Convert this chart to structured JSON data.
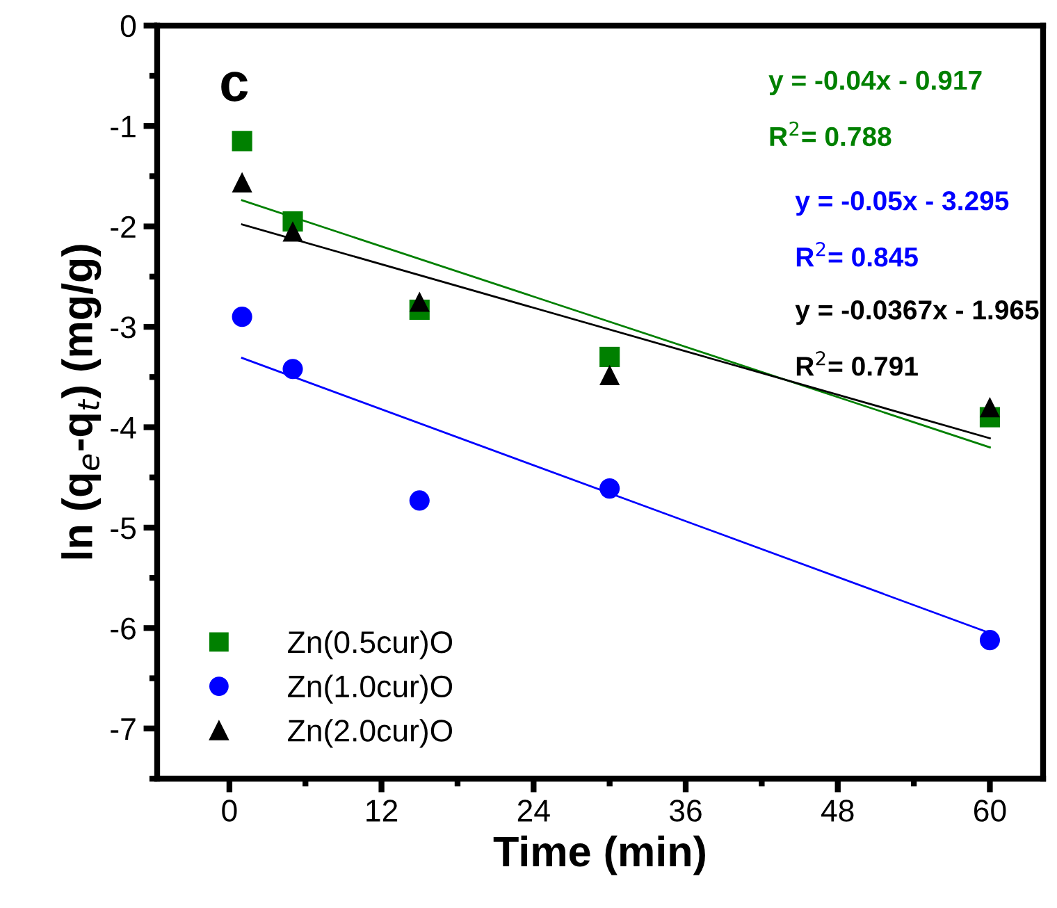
{
  "chart_data": {
    "type": "scatter",
    "xlabel": "Time (min)",
    "ylabel": "ln (q$_{e}$-q$_{t}$) (mg/g)",
    "xlim": [
      -5.7,
      64.2
    ],
    "ylim": [
      -7.5,
      0
    ],
    "xticks": [
      0,
      12,
      24,
      36,
      48,
      60
    ],
    "yticks": [
      -7,
      -6,
      -5,
      -4,
      -3,
      -2,
      -1,
      0
    ],
    "grid": false,
    "legend": "bottom left",
    "series": [
      {
        "name": "Zn(0.5cur)O",
        "color": "#008000",
        "marker": "square",
        "x": [
          1,
          5,
          15,
          30,
          60
        ],
        "values": [
          -1.15,
          -1.95,
          -2.83,
          -3.3,
          -3.9
        ]
      },
      {
        "name": "Zn(1.0cur)O",
        "color": "#0000ff",
        "marker": "circle",
        "x": [
          1,
          5,
          15,
          30,
          60
        ],
        "values": [
          -2.9,
          -3.42,
          -4.73,
          -4.61,
          -6.12
        ]
      },
      {
        "name": "Zn(2.0cur)O",
        "color": "#000000",
        "marker": "triangle",
        "x": [
          1,
          5,
          15,
          30,
          60
        ],
        "values": [
          -1.56,
          -2.05,
          -2.75,
          -3.48,
          -3.8
        ]
      },
      {
        "type": "line",
        "color": "#008000",
        "x": [
          1,
          60
        ],
        "values": [
          -1.74,
          -4.2
        ]
      },
      {
        "type": "line",
        "color": "#0000ff",
        "x": [
          1,
          60
        ],
        "values": [
          -3.31,
          -6.05
        ]
      },
      {
        "type": "line",
        "color": "#000000",
        "x": [
          1,
          60
        ],
        "values": [
          -1.98,
          -4.11
        ]
      }
    ],
    "annotations": [
      "c",
      "y = -0.04x - 0.917",
      "R$^{2}$= 0.788",
      "y = -0.05x - 3.295",
      "R$^{2}$= 0.845",
      "y = -0.0367x - 1.965",
      "R$^{2}$= 0.791"
    ]
  }
}
